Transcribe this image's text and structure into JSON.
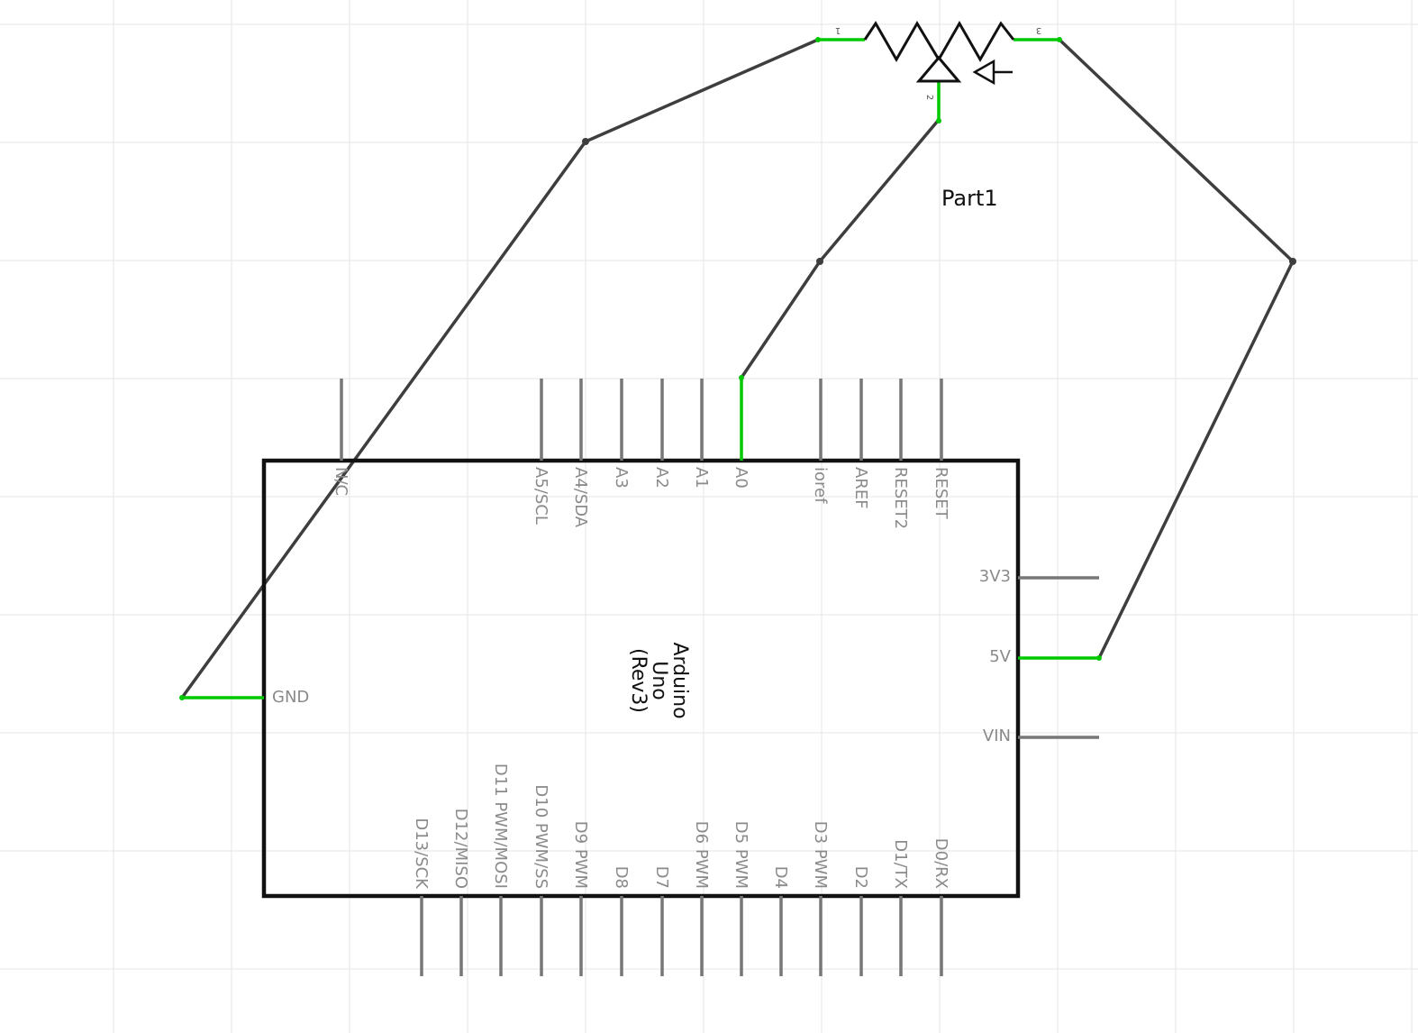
{
  "part_label": "Part1",
  "board": {
    "name_lines": [
      "Arduino",
      "Uno",
      "(Rev3)"
    ],
    "top_pins": [
      "N/C",
      "A5/SCL",
      "A4/SDA",
      "A3",
      "A2",
      "A1",
      "A0",
      "ioref",
      "AREF",
      "RESET2",
      "RESET"
    ],
    "bottom_pins": [
      "D13/SCK",
      "D12/MISO",
      "D11 PWM/MOSI",
      "D10 PWM/SS",
      "D9 PWM",
      "D8",
      "D7",
      "D6 PWM",
      "D5 PWM",
      "D4",
      "D3 PWM",
      "D2",
      "D1/TX",
      "D0/RX"
    ],
    "right_pins": [
      "3V3",
      "5V",
      "VIN"
    ],
    "left_pins": [
      "GND"
    ]
  },
  "potentiometer": {
    "pin_numbers": [
      "1",
      "2",
      "3"
    ]
  },
  "connections": [
    {
      "from": "potentiometer pin 1",
      "to": "GND"
    },
    {
      "from": "potentiometer pin 2",
      "to": "A0"
    },
    {
      "from": "potentiometer pin 3",
      "to": "5V"
    }
  ],
  "colors": {
    "connected_pin": "#00c800",
    "unconnected_pin": "#777777",
    "wire": "#3e3e3e",
    "board_outline": "#111111",
    "grid": "#e6e6e6"
  }
}
